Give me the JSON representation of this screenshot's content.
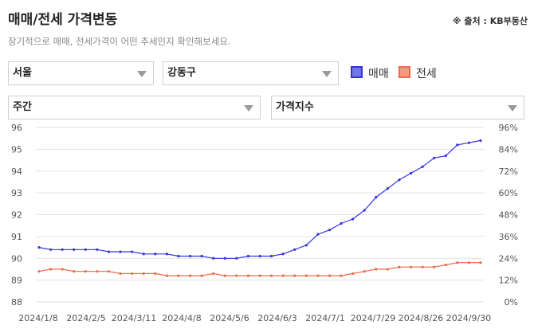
{
  "header": {
    "title": "매매/전세 가격변동",
    "source": "※ 출처 : KB부동산",
    "subtitle": "장기적으로 매매, 전세가격이 어떤 추세인지 확인해보세요."
  },
  "filters": {
    "region": "서울",
    "district": "강동구",
    "period": "주간",
    "metric": "가격지수"
  },
  "legend": {
    "sale_label": "매매",
    "jeonse_label": "전세"
  },
  "colors": {
    "sale": "#3333dd",
    "jeonse": "#ee6a48",
    "grid": "#e2e2e2"
  },
  "chart_data": {
    "type": "line",
    "x_tick_labels": [
      "2024/1/8",
      "2024/2/5",
      "2024/3/11",
      "2024/4/8",
      "2024/5/6",
      "2024/6/3",
      "2024/7/1",
      "2024/7/29",
      "2024/8/26",
      "2024/9/30"
    ],
    "y_left": {
      "min": 88,
      "max": 96,
      "ticks": [
        "96",
        "95",
        "94",
        "93",
        "92",
        "91",
        "90",
        "89",
        "88"
      ]
    },
    "y_right": {
      "ticks": [
        "96%",
        "84%",
        "72%",
        "60%",
        "48%",
        "36%",
        "24%",
        "12%",
        "0%"
      ]
    },
    "grid": true,
    "series": [
      {
        "name": "매매",
        "values": [
          90.5,
          90.4,
          90.4,
          90.4,
          90.4,
          90.4,
          90.3,
          90.3,
          90.3,
          90.2,
          90.2,
          90.2,
          90.1,
          90.1,
          90.1,
          90.0,
          90.0,
          90.0,
          90.1,
          90.1,
          90.1,
          90.2,
          90.4,
          90.6,
          91.1,
          91.3,
          91.6,
          91.8,
          92.2,
          92.8,
          93.2,
          93.6,
          93.9,
          94.2,
          94.6,
          94.7,
          95.2,
          95.3,
          95.4
        ]
      },
      {
        "name": "전세",
        "values": [
          89.4,
          89.5,
          89.5,
          89.4,
          89.4,
          89.4,
          89.4,
          89.3,
          89.3,
          89.3,
          89.3,
          89.2,
          89.2,
          89.2,
          89.2,
          89.3,
          89.2,
          89.2,
          89.2,
          89.2,
          89.2,
          89.2,
          89.2,
          89.2,
          89.2,
          89.2,
          89.2,
          89.3,
          89.4,
          89.5,
          89.5,
          89.6,
          89.6,
          89.6,
          89.6,
          89.7,
          89.8,
          89.8,
          89.8
        ]
      }
    ]
  }
}
